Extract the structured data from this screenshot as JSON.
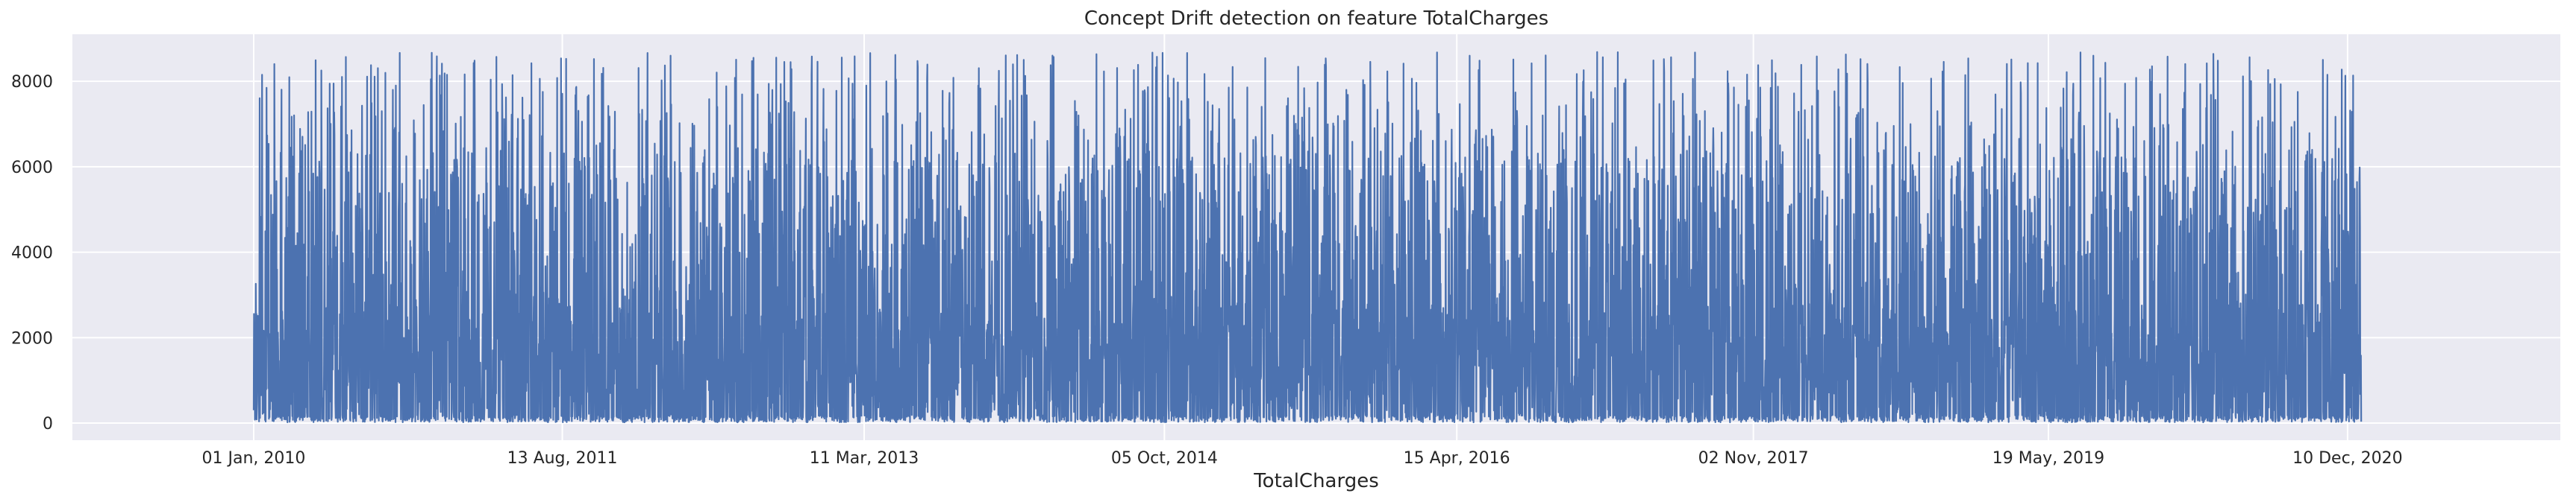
{
  "chart_data": {
    "type": "line",
    "title": "Concept Drift detection on feature TotalCharges",
    "xlabel": "TotalCharges",
    "ylabel": "",
    "x_start": "2010-01-01",
    "x_end": "2021-01-05",
    "xlim": [
      "2009-01-20",
      "2022-01-20"
    ],
    "ylim": [
      -400,
      9100
    ],
    "x_ticks": [
      {
        "date": "2010-01-01",
        "label": "01 Jan, 2010"
      },
      {
        "date": "2011-08-13",
        "label": "13 Aug, 2011"
      },
      {
        "date": "2013-03-11",
        "label": "11 Mar, 2013"
      },
      {
        "date": "2014-10-05",
        "label": "05 Oct, 2014"
      },
      {
        "date": "2016-04-15",
        "label": "15 Apr, 2016"
      },
      {
        "date": "2017-11-02",
        "label": "02 Nov, 2017"
      },
      {
        "date": "2019-05-19",
        "label": "19 May, 2019"
      },
      {
        "date": "2020-12-10",
        "label": "10 Dec, 2020"
      }
    ],
    "y_ticks": [
      {
        "value": 0,
        "label": "0"
      },
      {
        "value": 2000,
        "label": "2000"
      },
      {
        "value": 4000,
        "label": "4000"
      },
      {
        "value": 6000,
        "label": "6000"
      },
      {
        "value": 8000,
        "label": "8000"
      }
    ],
    "series": [
      {
        "name": "",
        "color": "#4c72b0",
        "value_range": [
          18.8,
          8684.8
        ],
        "points": 7043
      }
    ],
    "grid": true,
    "background": "#eaeaf2",
    "legend": "none"
  }
}
